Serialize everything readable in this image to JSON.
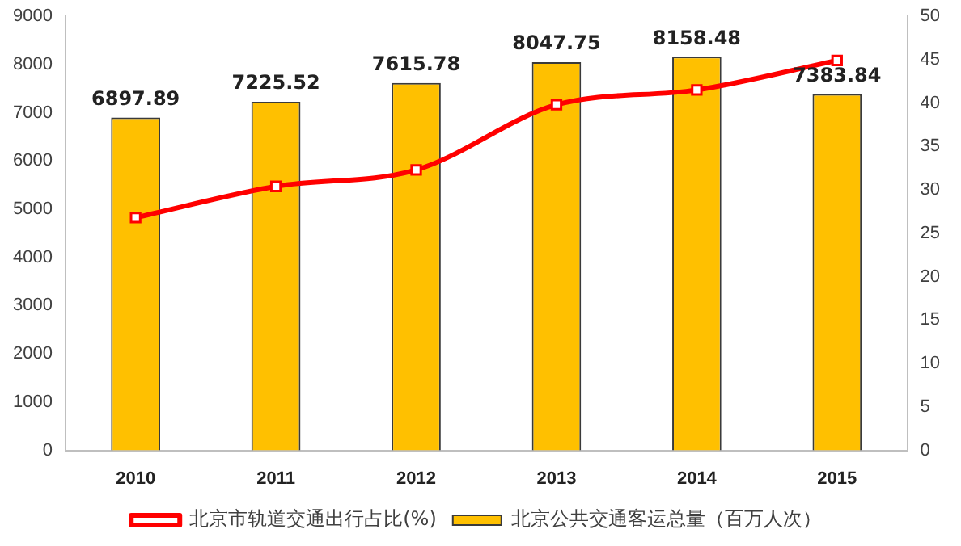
{
  "chart_data": {
    "type": "bar",
    "categories": [
      "2010",
      "2011",
      "2012",
      "2013",
      "2014",
      "2015"
    ],
    "series": [
      {
        "name": "北京公共交通客运总量（百万人次）",
        "color": "#ffc000",
        "values": [
          6897.89,
          7225.52,
          7615.78,
          8047.75,
          8158.48,
          7383.84
        ],
        "value_labels": [
          "6897.89",
          "7225.52",
          "7615.78",
          "8047.75",
          "8158.48",
          "7383.84"
        ]
      },
      {
        "name": "北京市轨道交通出行占比(%)",
        "type": "line",
        "axis": "y2",
        "color": "#ff0000",
        "marker": "square",
        "values": [
          26.8,
          30.4,
          32.3,
          39.8,
          41.5,
          44.9
        ]
      }
    ],
    "ylim": [
      0,
      9000
    ],
    "yticks": [
      0,
      1000,
      2000,
      3000,
      4000,
      5000,
      6000,
      7000,
      8000,
      9000
    ],
    "y2lim": [
      0,
      50
    ],
    "y2ticks": [
      0,
      5,
      10,
      15,
      20,
      25,
      30,
      35,
      40,
      45,
      50
    ],
    "grid": false,
    "legend": "bottom"
  }
}
